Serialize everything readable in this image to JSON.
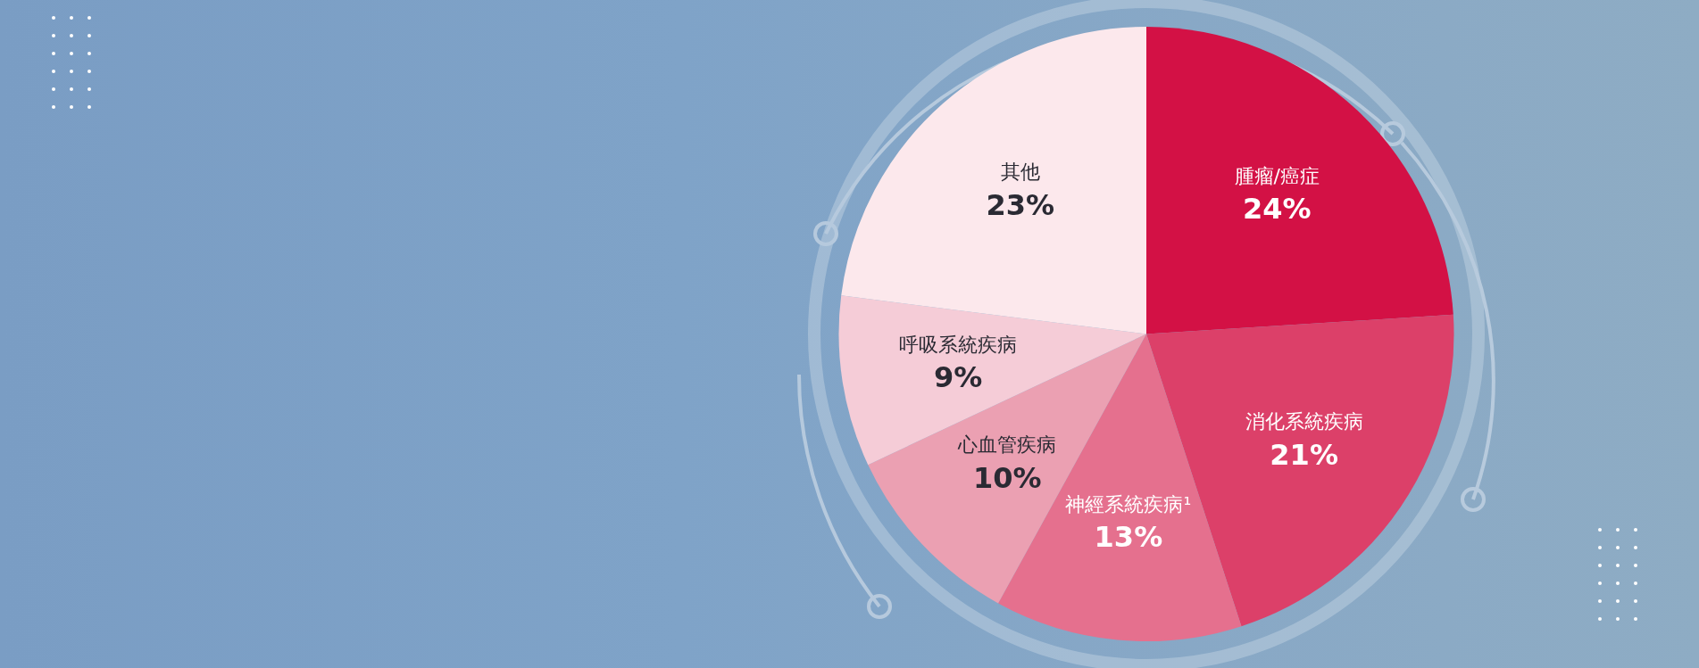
{
  "chart_data": {
    "type": "pie",
    "categories": [
      "腫瘤/癌症",
      "消化系統疾病",
      "神經系統疾病¹",
      "心血管疾病",
      "呼吸系統疾病",
      "其他"
    ],
    "values": [
      24,
      21,
      13,
      10,
      9,
      23
    ],
    "value_labels": [
      "24%",
      "21%",
      "13%",
      "10%",
      "9%",
      "23%"
    ],
    "colors": [
      "#d31145",
      "#dc4069",
      "#e5708e",
      "#eba0b2",
      "#f5ccd7",
      "#fce8ec"
    ],
    "legend": false
  }
}
